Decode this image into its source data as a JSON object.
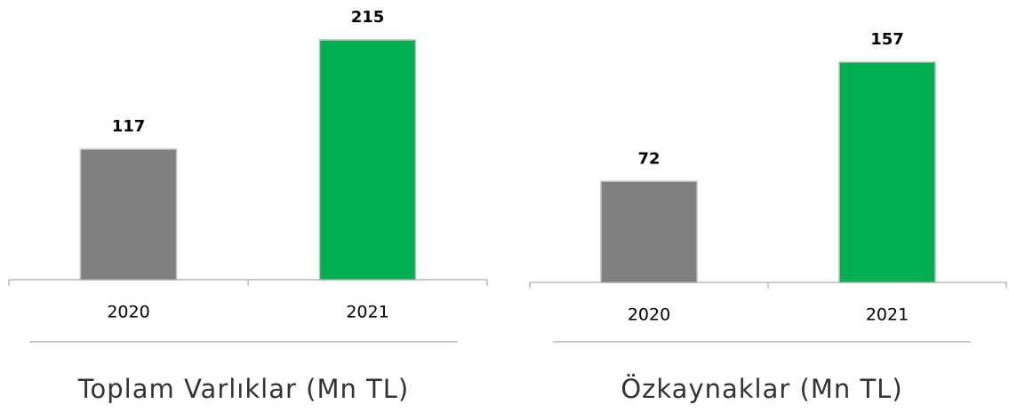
{
  "chart_data": [
    {
      "type": "bar",
      "title": "Toplam Varlıklar (Mn TL)",
      "categories": [
        "2020",
        "2021"
      ],
      "values": [
        117,
        215
      ],
      "colors": [
        "#808080",
        "#00b050"
      ]
    },
    {
      "type": "bar",
      "title": "Özkaynaklar (Mn TL)",
      "categories": [
        "2020",
        "2021"
      ],
      "values": [
        72,
        157
      ],
      "colors": [
        "#808080",
        "#00b050"
      ]
    }
  ]
}
